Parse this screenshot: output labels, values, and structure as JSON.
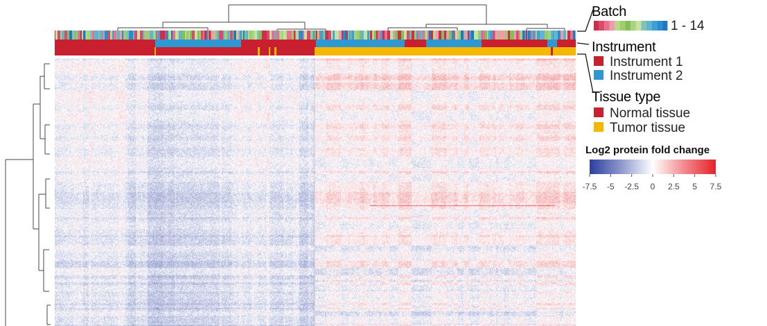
{
  "chart_data": {
    "type": "heatmap",
    "title": "",
    "value_label": "Log2 protein fold change",
    "color_range": [
      -7.5,
      7.5
    ],
    "colorbar_ticks": [
      "-7.5",
      "-5",
      "-2.5",
      "0",
      "2.5",
      "5",
      "7.5"
    ],
    "colormap": {
      "low": "#2b3f9e",
      "mid": "#ffffff",
      "high": "#e4232a"
    },
    "dendrogram_column": true,
    "dendrogram_row": true,
    "annotation_tracks": [
      {
        "name": "Batch",
        "label": "Batch",
        "range_label": "1 - 14",
        "levels": 14,
        "palette": [
          "#cf2e4a",
          "#dc4a6b",
          "#e8708c",
          "#f09aab",
          "#b9d98a",
          "#9ccc6b",
          "#83bf57",
          "#a6d47c",
          "#c5e2a0",
          "#7fc3b0",
          "#5fb4cf",
          "#3fa0d8",
          "#2a8cd0",
          "#1f78c0"
        ]
      },
      {
        "name": "Instrument",
        "label": "Instrument",
        "categories": [
          "Instrument 1",
          "Instrument 2"
        ],
        "colors": [
          "#c8202f",
          "#2f97d2"
        ]
      },
      {
        "name": "Tissue type",
        "label": "Tissue type",
        "categories": [
          "Normal tissue",
          "Tumor tissue"
        ],
        "colors": [
          "#c8202f",
          "#f5b800"
        ]
      }
    ],
    "column_groups": [
      {
        "name": "Normal tissue",
        "fraction": 0.5
      },
      {
        "name": "Tumor tissue",
        "fraction": 0.5
      }
    ]
  }
}
